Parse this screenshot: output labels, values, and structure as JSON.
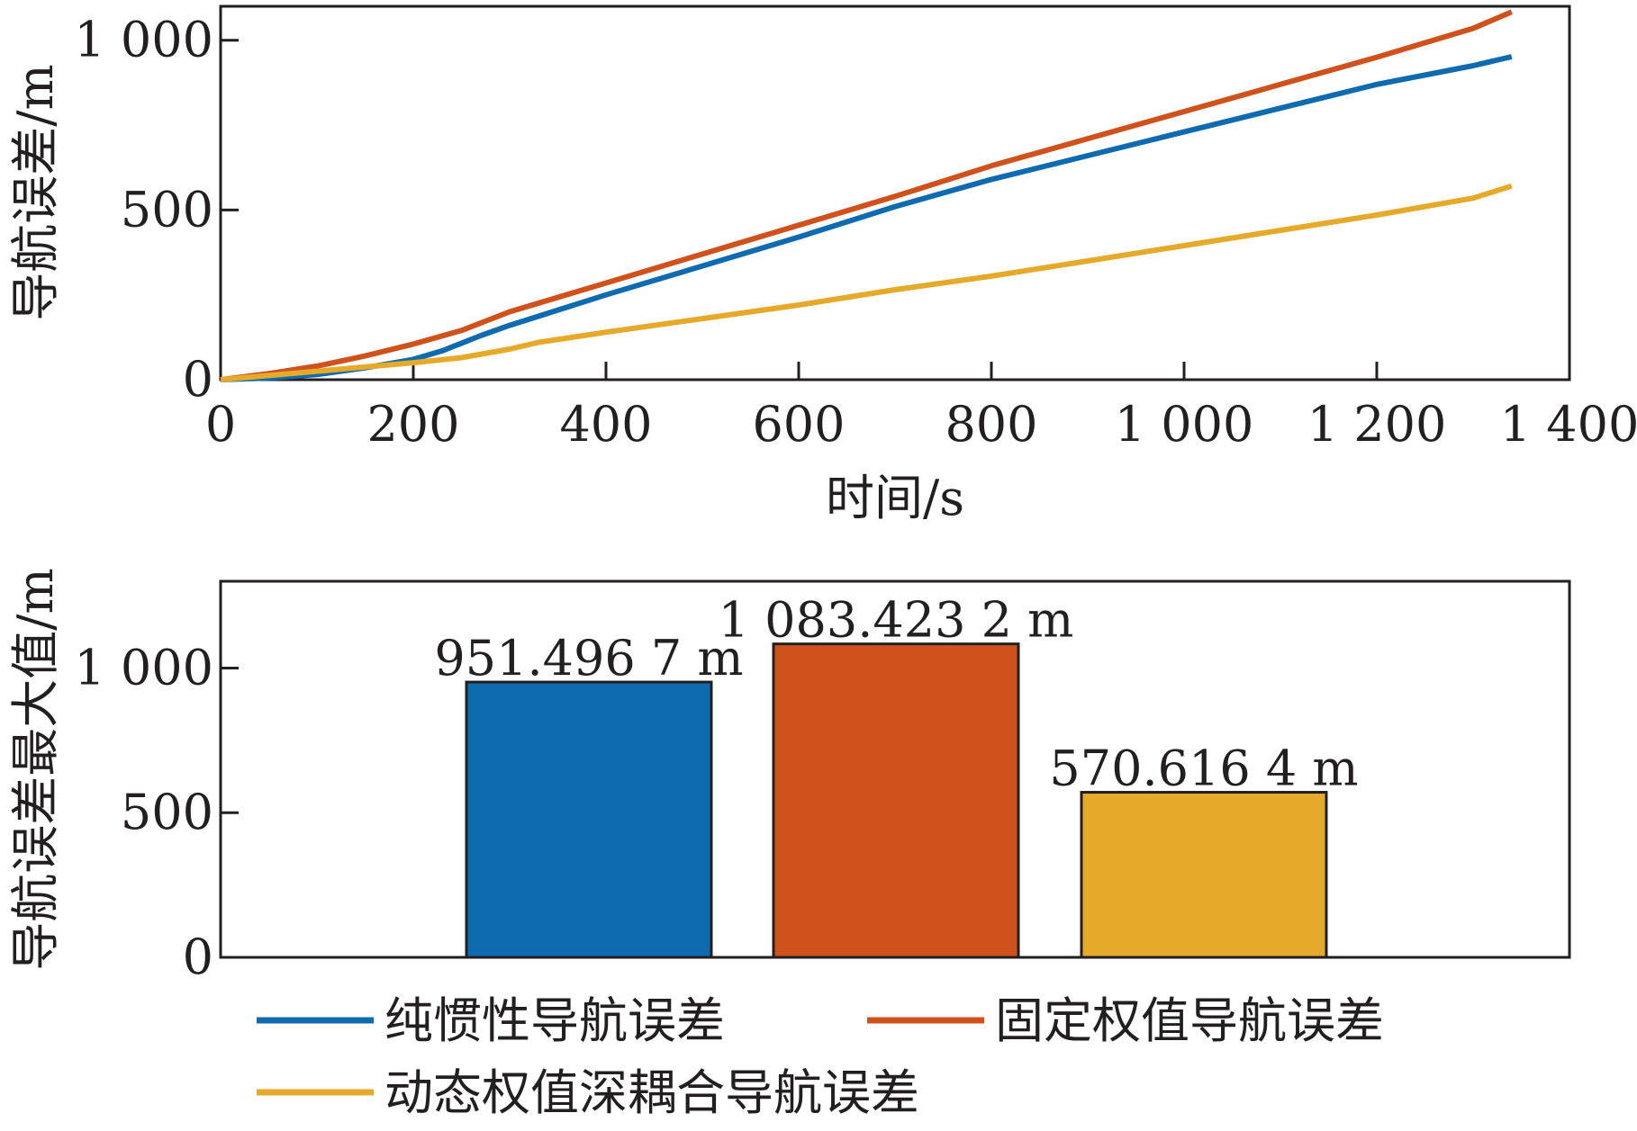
{
  "colors": {
    "blue": "#0F6BAF",
    "orange": "#CF521C",
    "yellow": "#E5AA2A",
    "axis": "#231F20"
  },
  "chart_data": [
    {
      "type": "line",
      "xlabel": "时间/s",
      "ylabel": "导航误差/m",
      "xlim": [
        0,
        1400
      ],
      "ylim": [
        0,
        1100
      ],
      "x_ticks": [
        0,
        200,
        400,
        600,
        800,
        1000,
        1200,
        1400
      ],
      "x_tick_labels": [
        "0",
        "200",
        "400",
        "600",
        "800",
        "1 000",
        "1 200",
        "1 400"
      ],
      "y_ticks": [
        0,
        500,
        1000
      ],
      "y_tick_labels": [
        "0",
        "500",
        "1 000"
      ],
      "grid": false,
      "series": [
        {
          "name": "纯惯性导航误差",
          "color": "#0F6BAF",
          "x": [
            0,
            50,
            100,
            150,
            200,
            230,
            270,
            300,
            400,
            500,
            600,
            700,
            800,
            900,
            1000,
            1100,
            1200,
            1300,
            1340
          ],
          "y": [
            0,
            5,
            15,
            35,
            60,
            85,
            130,
            160,
            250,
            335,
            420,
            510,
            590,
            660,
            730,
            800,
            870,
            925,
            951.5
          ]
        },
        {
          "name": "固定权值导航误差",
          "color": "#CF521C",
          "x": [
            0,
            50,
            100,
            150,
            200,
            250,
            300,
            400,
            500,
            600,
            700,
            800,
            900,
            1000,
            1100,
            1200,
            1300,
            1340
          ],
          "y": [
            0,
            18,
            40,
            70,
            105,
            145,
            200,
            285,
            370,
            455,
            540,
            630,
            710,
            790,
            870,
            950,
            1035,
            1083.4
          ]
        },
        {
          "name": "动态权值深耦合导航误差",
          "color": "#E5AA2A",
          "x": [
            0,
            100,
            200,
            250,
            300,
            330,
            400,
            500,
            600,
            700,
            800,
            900,
            1000,
            1100,
            1200,
            1300,
            1340
          ],
          "y": [
            0,
            25,
            50,
            65,
            90,
            110,
            140,
            180,
            220,
            265,
            305,
            350,
            395,
            440,
            485,
            535,
            570.6
          ]
        }
      ]
    },
    {
      "type": "bar",
      "ylabel": "导航误差最大值/m",
      "ylim": [
        0,
        1300
      ],
      "y_ticks": [
        0,
        500,
        1000
      ],
      "y_tick_labels": [
        "0",
        "500",
        "1 000"
      ],
      "grid": false,
      "categories": [
        "纯惯性导航误差",
        "固定权值导航误差",
        "动态权值深耦合导航误差"
      ],
      "values": [
        951.4967,
        1083.4232,
        570.6164
      ],
      "value_labels": [
        "951.496 7 m",
        "1 083.423 2 m",
        "570.616 4 m"
      ],
      "colors": [
        "#0F6BAF",
        "#CF521C",
        "#E5AA2A"
      ]
    }
  ],
  "legend": {
    "placement": "bottom",
    "items": [
      {
        "label": "纯惯性导航误差",
        "color": "#0F6BAF"
      },
      {
        "label": "固定权值导航误差",
        "color": "#CF521C"
      },
      {
        "label": "动态权值深耦合导航误差",
        "color": "#E5AA2A"
      }
    ]
  }
}
